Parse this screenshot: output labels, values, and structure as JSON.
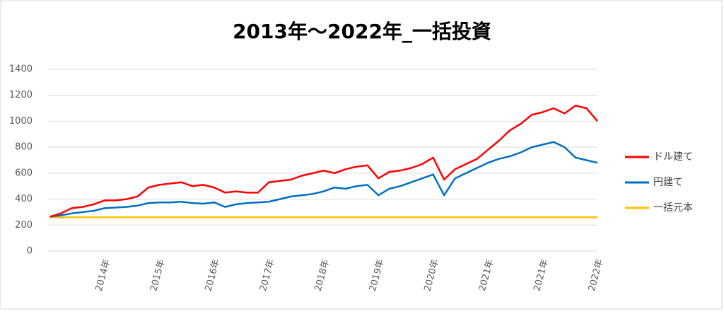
{
  "chart_data": {
    "type": "line",
    "title": "2013年～2022年_一括投資",
    "categories": [
      null,
      null,
      null,
      null,
      null,
      "2014年",
      null,
      null,
      null,
      null,
      "2015年",
      null,
      null,
      null,
      null,
      "2016年",
      null,
      null,
      null,
      null,
      "2017年",
      null,
      null,
      null,
      null,
      "2018年",
      null,
      null,
      null,
      null,
      "2019年",
      null,
      null,
      null,
      null,
      "2020年",
      null,
      null,
      null,
      null,
      "2021年",
      null,
      null,
      null,
      null,
      "2021年",
      null,
      null,
      null,
      null,
      "2022年"
    ],
    "series": [
      {
        "name": "ドル建て",
        "color": "#ff0000",
        "values": [
          265,
          290,
          330,
          340,
          360,
          390,
          390,
          400,
          420,
          490,
          510,
          520,
          530,
          500,
          510,
          490,
          450,
          460,
          450,
          450,
          530,
          540,
          550,
          580,
          600,
          620,
          600,
          630,
          650,
          660,
          560,
          610,
          620,
          640,
          670,
          720,
          550,
          630,
          670,
          710,
          780,
          850,
          930,
          980,
          1050,
          1070,
          1100,
          1060,
          1120,
          1100,
          1000
        ]
      },
      {
        "name": "円建て",
        "color": "#0070c0",
        "values": [
          265,
          275,
          290,
          300,
          310,
          330,
          335,
          340,
          350,
          370,
          375,
          375,
          380,
          370,
          365,
          375,
          340,
          360,
          370,
          375,
          380,
          400,
          420,
          430,
          440,
          460,
          490,
          480,
          500,
          510,
          430,
          480,
          500,
          530,
          560,
          590,
          430,
          560,
          600,
          640,
          680,
          710,
          730,
          760,
          800,
          820,
          840,
          800,
          720,
          700,
          680
        ]
      },
      {
        "name": "一括元本",
        "color": "#ffc000",
        "values": [
          260,
          260,
          260,
          260,
          260,
          260,
          260,
          260,
          260,
          260,
          260,
          260,
          260,
          260,
          260,
          260,
          260,
          260,
          260,
          260,
          260,
          260,
          260,
          260,
          260,
          260,
          260,
          260,
          260,
          260,
          260,
          260,
          260,
          260,
          260,
          260,
          260,
          260,
          260,
          260,
          260,
          260,
          260,
          260,
          260,
          260,
          260,
          260,
          260,
          260,
          260
        ]
      }
    ],
    "ylim": [
      0,
      1400
    ],
    "yticks": [
      0,
      200,
      400,
      600,
      800,
      1000,
      1200,
      1400
    ],
    "grid": true,
    "legend": "right"
  }
}
